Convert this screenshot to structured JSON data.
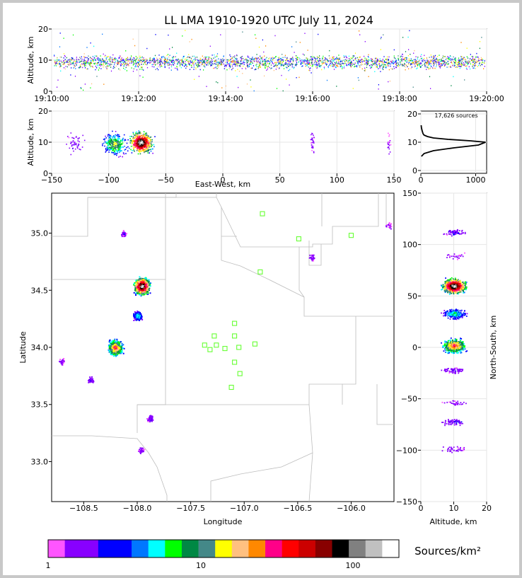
{
  "title": "LL LMA 1910-1920 UTC July 11, 2024",
  "source_count_label": "17,626 sources",
  "colorbar_label": "Sources/km²",
  "chart_data": [
    {
      "panel": "altitude-time",
      "type": "scatter",
      "ylabel": "Altitude, km",
      "ylim": [
        0,
        20
      ],
      "yticks": [
        "0",
        "10",
        "20"
      ],
      "xticks": [
        "19:10:00",
        "19:12:00",
        "19:14:00",
        "19:16:00",
        "19:18:00",
        "19:20:00"
      ],
      "xlim": [
        "19:10:00",
        "19:20:00"
      ],
      "grid": true
    },
    {
      "panel": "east-west-altitude",
      "type": "heatmap",
      "xlabel": "East-West, km",
      "ylabel": "Altitude, km",
      "xlim": [
        -150,
        150
      ],
      "ylim": [
        0,
        20
      ],
      "xticks": [
        "−150",
        "−100",
        "−50",
        "0",
        "50",
        "100",
        "150"
      ],
      "yticks": [
        "0",
        "10",
        "20"
      ],
      "clusters_km": [
        {
          "x": -130,
          "alt": 9.5,
          "count": 10
        },
        {
          "x": -95,
          "alt": 9.5,
          "count": 60
        },
        {
          "x": -72,
          "alt": 10,
          "count": 120
        },
        {
          "x": 78,
          "alt": 10,
          "count": 6
        },
        {
          "x": 145,
          "alt": 9.5,
          "count": 4
        }
      ]
    },
    {
      "panel": "altitude-histogram",
      "type": "line",
      "xlim": [
        0,
        1200
      ],
      "ylim": [
        0,
        20
      ],
      "xticks": [
        "0",
        "1000"
      ],
      "yticks": [
        "0",
        "10",
        "20"
      ],
      "x": [
        10,
        60,
        230,
        600,
        1050,
        1180,
        900,
        500,
        230,
        120,
        60,
        40,
        25,
        12,
        5
      ],
      "y": [
        5,
        6,
        7,
        8,
        9,
        10,
        10.5,
        11,
        11.5,
        12,
        12.5,
        13,
        14,
        15,
        16
      ]
    },
    {
      "panel": "plan-view",
      "type": "heatmap",
      "xlabel": "Longitude",
      "ylabel": "Latitude",
      "xlim": [
        -108.8,
        -105.6
      ],
      "ylim": [
        32.65,
        35.35
      ],
      "xticks": [
        "−108.5",
        "−108.0",
        "−107.5",
        "−107.0",
        "−106.5",
        "−106.0"
      ],
      "yticks": [
        "33.0",
        "33.5",
        "34.0",
        "34.5",
        "35.0"
      ],
      "clusters": [
        {
          "lon": -108.13,
          "lat": 35.0,
          "count": 8
        },
        {
          "lon": -107.96,
          "lat": 34.54,
          "count": 120
        },
        {
          "lon": -108.0,
          "lat": 34.28,
          "count": 40
        },
        {
          "lon": -108.21,
          "lat": 34.0,
          "count": 80
        },
        {
          "lon": -108.71,
          "lat": 33.88,
          "count": 6
        },
        {
          "lon": -108.44,
          "lat": 33.72,
          "count": 10
        },
        {
          "lon": -107.88,
          "lat": 33.38,
          "count": 12
        },
        {
          "lon": -107.97,
          "lat": 33.1,
          "count": 6
        },
        {
          "lon": -106.37,
          "lat": 34.79,
          "count": 4
        },
        {
          "lon": -105.65,
          "lat": 35.07,
          "count": 3
        }
      ],
      "stations": [
        {
          "lon": -106.83,
          "lat": 35.17
        },
        {
          "lon": -106.49,
          "lat": 34.95
        },
        {
          "lon": -106.0,
          "lat": 34.98
        },
        {
          "lon": -106.85,
          "lat": 34.66
        },
        {
          "lon": -107.09,
          "lat": 34.21
        },
        {
          "lon": -107.28,
          "lat": 34.1
        },
        {
          "lon": -107.09,
          "lat": 34.1
        },
        {
          "lon": -107.37,
          "lat": 34.02
        },
        {
          "lon": -107.26,
          "lat": 34.02
        },
        {
          "lon": -106.9,
          "lat": 34.03
        },
        {
          "lon": -107.32,
          "lat": 33.98
        },
        {
          "lon": -107.18,
          "lat": 33.99
        },
        {
          "lon": -107.05,
          "lat": 34.0
        },
        {
          "lon": -107.09,
          "lat": 33.87
        },
        {
          "lon": -107.04,
          "lat": 33.77
        },
        {
          "lon": -107.12,
          "lat": 33.65
        }
      ]
    },
    {
      "panel": "altitude-north-south",
      "type": "heatmap",
      "xlabel": "Altitude, km",
      "ylabel": "North-South, km",
      "xlim": [
        0,
        20
      ],
      "ylim": [
        -150,
        150
      ],
      "xticks": [
        "0",
        "10",
        "20"
      ],
      "yticks": [
        "−150",
        "−100",
        "−50",
        "0",
        "50",
        "100",
        "150"
      ],
      "clusters_km": [
        {
          "alt": 10,
          "y": 112,
          "count": 12
        },
        {
          "alt": 10,
          "y": 89,
          "count": 4
        },
        {
          "alt": 10,
          "y": 60,
          "count": 120
        },
        {
          "alt": 10,
          "y": 33,
          "count": 40
        },
        {
          "alt": 10,
          "y": 2,
          "count": 80
        },
        {
          "alt": 10,
          "y": -22,
          "count": 10
        },
        {
          "alt": 10,
          "y": -54,
          "count": 5
        },
        {
          "alt": 10,
          "y": -72,
          "count": 12
        },
        {
          "alt": 10,
          "y": -99,
          "count": 6
        }
      ]
    },
    {
      "panel": "colorbar",
      "type": "table",
      "ticks": [
        "1",
        "10",
        "100"
      ],
      "colors": [
        "#ff55ff",
        "#8800ff",
        "#8800ff",
        "#0000ff",
        "#0000ff",
        "#0077ff",
        "#00ffff",
        "#00ff00",
        "#008844",
        "#448888",
        "#ffff00",
        "#ffc080",
        "#ff8800",
        "#ff0088",
        "#ff0000",
        "#cc0000",
        "#880000",
        "#000000",
        "#808080",
        "#c0c0c0",
        "#ffffff"
      ]
    }
  ]
}
